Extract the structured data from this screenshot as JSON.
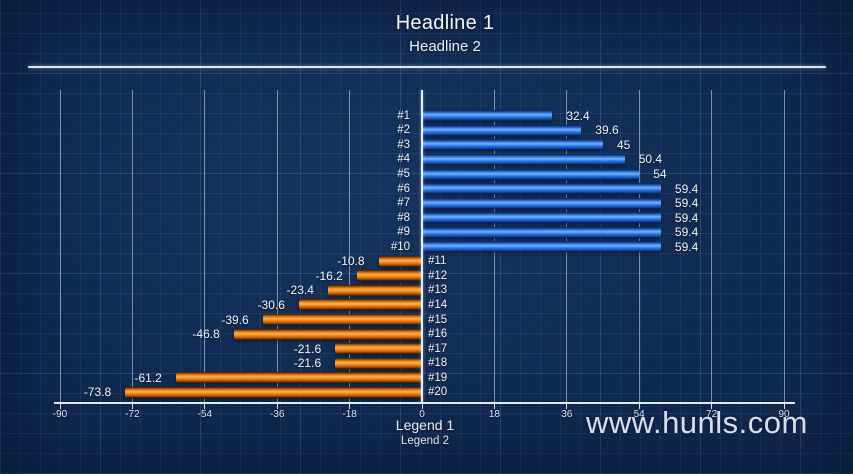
{
  "header": {
    "title": "Headline 1",
    "subtitle": "Headline 2"
  },
  "legend": {
    "line1": "Legend 1",
    "line2": "Legend 2"
  },
  "watermark_text": "www.hunls.com",
  "chart_data": {
    "type": "bar",
    "orientation": "horizontal",
    "title": "Headline 1",
    "subtitle": "Headline 2",
    "categories": [
      "#1",
      "#2",
      "#3",
      "#4",
      "#5",
      "#6",
      "#7",
      "#8",
      "#9",
      "#10",
      "#11",
      "#12",
      "#13",
      "#14",
      "#15",
      "#16",
      "#17",
      "#18",
      "#19",
      "#20"
    ],
    "values": [
      32.4,
      39.6,
      45,
      50.4,
      54,
      59.4,
      59.4,
      59.4,
      59.4,
      59.4,
      -10.8,
      -16.2,
      -23.4,
      -30.6,
      -39.6,
      -46.8,
      -21.6,
      -21.6,
      -61.2,
      -73.8
    ],
    "value_labels": [
      "32.4",
      "39.6",
      "45",
      "50.4",
      "54",
      "59.4",
      "59.4",
      "59.4",
      "59.4",
      "59.4",
      "-10.8",
      "-16.2",
      "-23.4",
      "-30.6",
      "-39.6",
      "-46.8",
      "-21.6",
      "-21.6",
      "-61.2",
      "-73.8"
    ],
    "xlim": [
      -90,
      90
    ],
    "xticks": [
      -90,
      -72,
      -54,
      -36,
      -18,
      0,
      18,
      36,
      54,
      72,
      90
    ],
    "grid": true,
    "legend_lines": [
      "Legend 1",
      "Legend 2"
    ],
    "positive_color": "#4f9ef5",
    "negative_color": "#f78c1e",
    "background_color": "#0f2a50",
    "gridline_color": "#d8e5f3",
    "text_color": "#f2f6fa"
  }
}
